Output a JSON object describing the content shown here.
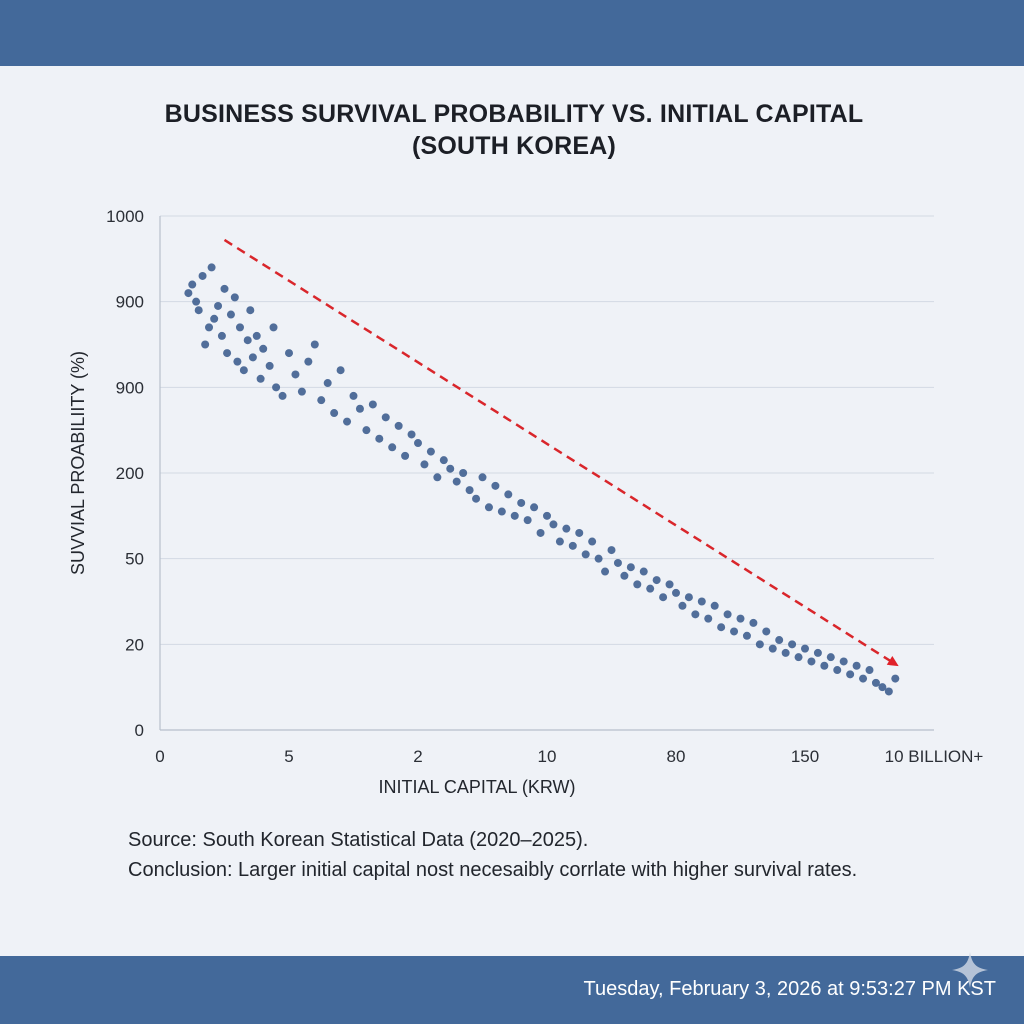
{
  "footer": {
    "source": "Source: South Korean Statistical Data (2020–2025).",
    "conclusion": "Conclusion: Larger initial capital nost necesaibly corrlate with higher survival rates.",
    "timestamp": "Tuesday, February 3, 2026 at 9:53:27 PM KST"
  },
  "chart_data": {
    "type": "scatter",
    "title": "BUSINESS SURVIVAL PROBABILITY VS. INITIAL CAPITAL (SOUTH KOREA)",
    "xlabel": "INITIAL CAPITAL (KRW)",
    "ylabel": "SUVVIAL PROABILIITY (%)",
    "x_tick_labels": [
      "0",
      "5",
      "2",
      "10",
      "80",
      "150",
      "10 BILLION+"
    ],
    "y_tick_labels": [
      "0",
      "20",
      "50",
      "200",
      "900",
      "900",
      "1000"
    ],
    "x_scale": "categorical-ordinal (tick positions 0–6)",
    "xlim": [
      0,
      6
    ],
    "ylim": [
      0,
      6
    ],
    "grid": true,
    "trend_line": {
      "style": "red dashed with arrowhead",
      "x": [
        0.5,
        5.7
      ],
      "y": [
        5.72,
        0.77
      ]
    },
    "series": [
      {
        "points": [
          [
            0.22,
            5.1
          ],
          [
            0.25,
            5.2
          ],
          [
            0.28,
            5.0
          ],
          [
            0.3,
            4.9
          ],
          [
            0.33,
            5.3
          ],
          [
            0.35,
            4.5
          ],
          [
            0.38,
            4.7
          ],
          [
            0.4,
            5.4
          ],
          [
            0.42,
            4.8
          ],
          [
            0.45,
            4.95
          ],
          [
            0.48,
            4.6
          ],
          [
            0.5,
            5.15
          ],
          [
            0.52,
            4.4
          ],
          [
            0.55,
            4.85
          ],
          [
            0.58,
            5.05
          ],
          [
            0.6,
            4.3
          ],
          [
            0.62,
            4.7
          ],
          [
            0.65,
            4.2
          ],
          [
            0.68,
            4.55
          ],
          [
            0.7,
            4.9
          ],
          [
            0.72,
            4.35
          ],
          [
            0.75,
            4.6
          ],
          [
            0.78,
            4.1
          ],
          [
            0.8,
            4.45
          ],
          [
            0.85,
            4.25
          ],
          [
            0.88,
            4.7
          ],
          [
            0.9,
            4.0
          ],
          [
            0.95,
            3.9
          ],
          [
            1.0,
            4.4
          ],
          [
            1.05,
            4.15
          ],
          [
            1.1,
            3.95
          ],
          [
            1.15,
            4.3
          ],
          [
            1.2,
            4.5
          ],
          [
            1.25,
            3.85
          ],
          [
            1.3,
            4.05
          ],
          [
            1.35,
            3.7
          ],
          [
            1.4,
            4.2
          ],
          [
            1.45,
            3.6
          ],
          [
            1.5,
            3.9
          ],
          [
            1.55,
            3.75
          ],
          [
            1.6,
            3.5
          ],
          [
            1.65,
            3.8
          ],
          [
            1.7,
            3.4
          ],
          [
            1.75,
            3.65
          ],
          [
            1.8,
            3.3
          ],
          [
            1.85,
            3.55
          ],
          [
            1.9,
            3.2
          ],
          [
            1.95,
            3.45
          ],
          [
            2.0,
            3.35
          ],
          [
            2.05,
            3.1
          ],
          [
            2.1,
            3.25
          ],
          [
            2.15,
            2.95
          ],
          [
            2.2,
            3.15
          ],
          [
            2.25,
            3.05
          ],
          [
            2.3,
            2.9
          ],
          [
            2.35,
            3.0
          ],
          [
            2.4,
            2.8
          ],
          [
            2.45,
            2.7
          ],
          [
            2.5,
            2.95
          ],
          [
            2.55,
            2.6
          ],
          [
            2.6,
            2.85
          ],
          [
            2.65,
            2.55
          ],
          [
            2.7,
            2.75
          ],
          [
            2.75,
            2.5
          ],
          [
            2.8,
            2.65
          ],
          [
            2.85,
            2.45
          ],
          [
            2.9,
            2.6
          ],
          [
            2.95,
            2.3
          ],
          [
            3.0,
            2.5
          ],
          [
            3.05,
            2.4
          ],
          [
            3.1,
            2.2
          ],
          [
            3.15,
            2.35
          ],
          [
            3.2,
            2.15
          ],
          [
            3.25,
            2.3
          ],
          [
            3.3,
            2.05
          ],
          [
            3.35,
            2.2
          ],
          [
            3.4,
            2.0
          ],
          [
            3.45,
            1.85
          ],
          [
            3.5,
            2.1
          ],
          [
            3.55,
            1.95
          ],
          [
            3.6,
            1.8
          ],
          [
            3.65,
            1.9
          ],
          [
            3.7,
            1.7
          ],
          [
            3.75,
            1.85
          ],
          [
            3.8,
            1.65
          ],
          [
            3.85,
            1.75
          ],
          [
            3.9,
            1.55
          ],
          [
            3.95,
            1.7
          ],
          [
            4.0,
            1.6
          ],
          [
            4.05,
            1.45
          ],
          [
            4.1,
            1.55
          ],
          [
            4.15,
            1.35
          ],
          [
            4.2,
            1.5
          ],
          [
            4.25,
            1.3
          ],
          [
            4.3,
            1.45
          ],
          [
            4.35,
            1.2
          ],
          [
            4.4,
            1.35
          ],
          [
            4.45,
            1.15
          ],
          [
            4.5,
            1.3
          ],
          [
            4.55,
            1.1
          ],
          [
            4.6,
            1.25
          ],
          [
            4.65,
            1.0
          ],
          [
            4.7,
            1.15
          ],
          [
            4.75,
            0.95
          ],
          [
            4.8,
            1.05
          ],
          [
            4.85,
            0.9
          ],
          [
            4.9,
            1.0
          ],
          [
            4.95,
            0.85
          ],
          [
            5.0,
            0.95
          ],
          [
            5.05,
            0.8
          ],
          [
            5.1,
            0.9
          ],
          [
            5.15,
            0.75
          ],
          [
            5.2,
            0.85
          ],
          [
            5.25,
            0.7
          ],
          [
            5.3,
            0.8
          ],
          [
            5.35,
            0.65
          ],
          [
            5.4,
            0.75
          ],
          [
            5.45,
            0.6
          ],
          [
            5.5,
            0.7
          ],
          [
            5.55,
            0.55
          ],
          [
            5.6,
            0.5
          ],
          [
            5.65,
            0.45
          ],
          [
            5.7,
            0.6
          ]
        ],
        "color": "#3f5f8f"
      }
    ]
  }
}
